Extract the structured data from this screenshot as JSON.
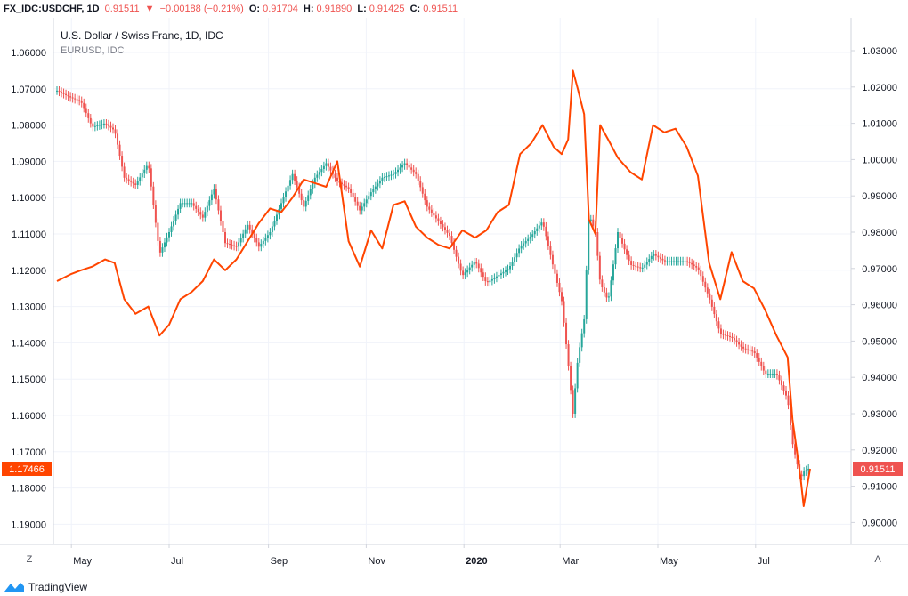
{
  "header": {
    "symbol": "FX_IDC:USDCHF, 1D",
    "last": "0.91511",
    "change_arrow": "▼",
    "change": "−0.00188 (−0.21%)",
    "o_label": "O:",
    "o_value": "0.91704",
    "h_label": "H:",
    "h_value": "0.91890",
    "l_label": "L:",
    "l_value": "0.91425",
    "c_label": "C:",
    "c_value": "0.91511"
  },
  "legend": {
    "main": "U.S. Dollar / Swiss Franc, 1D, IDC",
    "compare": "EURUSD, IDC"
  },
  "footer": {
    "scale_z": "Z",
    "scale_a": "A",
    "brand": "TradingView"
  },
  "colors": {
    "up": "#26a69a",
    "down": "#ef5350",
    "compare_line": "#ff4500",
    "grid": "#f0f3fa",
    "axis_text": "#131722"
  },
  "chart_data": {
    "type": "candlestick_with_compare_line",
    "x_ticks": [
      "May",
      "Jul",
      "Sep",
      "Nov",
      "2020",
      "Mar",
      "May",
      "Jul"
    ],
    "left_axis": {
      "series": "EURUSD",
      "inverted": true,
      "ticks": [
        "1.06000",
        "1.07000",
        "1.08000",
        "1.09000",
        "1.10000",
        "1.11000",
        "1.12000",
        "1.13000",
        "1.14000",
        "1.15000",
        "1.16000",
        "1.17000",
        "1.18000",
        "1.19000"
      ],
      "current_label": "1.17466",
      "current_value": 1.17466
    },
    "right_axis": {
      "series": "USDCHF",
      "ticks": [
        "1.03000",
        "1.02000",
        "1.01000",
        "1.00000",
        "0.99000",
        "0.98000",
        "0.97000",
        "0.96000",
        "0.95000",
        "0.94000",
        "0.93000",
        "0.92000",
        "0.91000",
        "0.90000"
      ],
      "current_label": "0.91511",
      "current_value": 0.91511
    },
    "usdchf_close_keypoints": [
      [
        "2019-04-22",
        1.019
      ],
      [
        "2019-05-01",
        1.017
      ],
      [
        "2019-05-07",
        1.016
      ],
      [
        "2019-05-14",
        1.009
      ],
      [
        "2019-05-22",
        1.01
      ],
      [
        "2019-05-28",
        1.008
      ],
      [
        "2019-06-03",
        0.995
      ],
      [
        "2019-06-10",
        0.993
      ],
      [
        "2019-06-18",
        0.999
      ],
      [
        "2019-06-25",
        0.974
      ],
      [
        "2019-07-01",
        0.98
      ],
      [
        "2019-07-08",
        0.988
      ],
      [
        "2019-07-15",
        0.988
      ],
      [
        "2019-07-22",
        0.984
      ],
      [
        "2019-07-29",
        0.992
      ],
      [
        "2019-08-05",
        0.977
      ],
      [
        "2019-08-12",
        0.976
      ],
      [
        "2019-08-19",
        0.982
      ],
      [
        "2019-08-26",
        0.976
      ],
      [
        "2019-09-02",
        0.98
      ],
      [
        "2019-09-09",
        0.988
      ],
      [
        "2019-09-16",
        0.996
      ],
      [
        "2019-09-23",
        0.987
      ],
      [
        "2019-09-30",
        0.995
      ],
      [
        "2019-10-07",
        0.999
      ],
      [
        "2019-10-14",
        0.994
      ],
      [
        "2019-10-21",
        0.992
      ],
      [
        "2019-10-28",
        0.986
      ],
      [
        "2019-11-04",
        0.991
      ],
      [
        "2019-11-11",
        0.995
      ],
      [
        "2019-11-18",
        0.996
      ],
      [
        "2019-11-25",
        0.999
      ],
      [
        "2019-12-02",
        0.996
      ],
      [
        "2019-12-09",
        0.987
      ],
      [
        "2019-12-16",
        0.983
      ],
      [
        "2019-12-23",
        0.979
      ],
      [
        "2019-12-31",
        0.968
      ],
      [
        "2020-01-08",
        0.972
      ],
      [
        "2020-01-15",
        0.966
      ],
      [
        "2020-01-22",
        0.968
      ],
      [
        "2020-01-29",
        0.97
      ],
      [
        "2020-02-05",
        0.976
      ],
      [
        "2020-02-12",
        0.979
      ],
      [
        "2020-02-19",
        0.983
      ],
      [
        "2020-02-26",
        0.97
      ],
      [
        "2020-03-02",
        0.961
      ],
      [
        "2020-03-06",
        0.944
      ],
      [
        "2020-03-09",
        0.93
      ],
      [
        "2020-03-12",
        0.945
      ],
      [
        "2020-03-16",
        0.956
      ],
      [
        "2020-03-19",
        0.985
      ],
      [
        "2020-03-23",
        0.98
      ],
      [
        "2020-03-26",
        0.966
      ],
      [
        "2020-03-31",
        0.961
      ],
      [
        "2020-04-06",
        0.98
      ],
      [
        "2020-04-14",
        0.971
      ],
      [
        "2020-04-21",
        0.97
      ],
      [
        "2020-04-28",
        0.974
      ],
      [
        "2020-05-05",
        0.972
      ],
      [
        "2020-05-12",
        0.972
      ],
      [
        "2020-05-19",
        0.972
      ],
      [
        "2020-05-26",
        0.97
      ],
      [
        "2020-06-02",
        0.962
      ],
      [
        "2020-06-09",
        0.952
      ],
      [
        "2020-06-16",
        0.951
      ],
      [
        "2020-06-23",
        0.948
      ],
      [
        "2020-06-30",
        0.947
      ],
      [
        "2020-07-07",
        0.941
      ],
      [
        "2020-07-14",
        0.941
      ],
      [
        "2020-07-21",
        0.934
      ],
      [
        "2020-07-24",
        0.922
      ],
      [
        "2020-07-29",
        0.912
      ],
      [
        "2020-07-31",
        0.914
      ],
      [
        "2020-08-04",
        0.9151
      ]
    ],
    "eurusd_keypoints": [
      [
        "2019-04-22",
        1.123
      ],
      [
        "2019-05-01",
        1.121
      ],
      [
        "2019-05-07",
        1.12
      ],
      [
        "2019-05-14",
        1.119
      ],
      [
        "2019-05-22",
        1.117
      ],
      [
        "2019-05-28",
        1.118
      ],
      [
        "2019-06-03",
        1.128
      ],
      [
        "2019-06-10",
        1.132
      ],
      [
        "2019-06-18",
        1.13
      ],
      [
        "2019-06-25",
        1.138
      ],
      [
        "2019-07-01",
        1.135
      ],
      [
        "2019-07-08",
        1.128
      ],
      [
        "2019-07-15",
        1.126
      ],
      [
        "2019-07-22",
        1.123
      ],
      [
        "2019-07-29",
        1.117
      ],
      [
        "2019-08-05",
        1.12
      ],
      [
        "2019-08-12",
        1.117
      ],
      [
        "2019-08-19",
        1.112
      ],
      [
        "2019-08-26",
        1.107
      ],
      [
        "2019-09-02",
        1.103
      ],
      [
        "2019-09-09",
        1.104
      ],
      [
        "2019-09-16",
        1.1
      ],
      [
        "2019-09-23",
        1.095
      ],
      [
        "2019-09-30",
        1.096
      ],
      [
        "2019-10-07",
        1.097
      ],
      [
        "2019-10-14",
        1.09
      ],
      [
        "2019-10-21",
        1.112
      ],
      [
        "2019-10-28",
        1.119
      ],
      [
        "2019-11-04",
        1.109
      ],
      [
        "2019-11-11",
        1.114
      ],
      [
        "2019-11-18",
        1.102
      ],
      [
        "2019-11-25",
        1.101
      ],
      [
        "2019-12-02",
        1.108
      ],
      [
        "2019-12-09",
        1.111
      ],
      [
        "2019-12-16",
        1.113
      ],
      [
        "2019-12-23",
        1.114
      ],
      [
        "2019-12-31",
        1.109
      ],
      [
        "2020-01-08",
        1.111
      ],
      [
        "2020-01-15",
        1.109
      ],
      [
        "2020-01-22",
        1.104
      ],
      [
        "2020-01-29",
        1.102
      ],
      [
        "2020-02-05",
        1.088
      ],
      [
        "2020-02-12",
        1.085
      ],
      [
        "2020-02-19",
        1.08
      ],
      [
        "2020-02-26",
        1.086
      ],
      [
        "2020-03-02",
        1.088
      ],
      [
        "2020-03-06",
        1.084
      ],
      [
        "2020-03-09",
        1.065
      ],
      [
        "2020-03-12",
        1.07
      ],
      [
        "2020-03-16",
        1.077
      ],
      [
        "2020-03-19",
        1.106
      ],
      [
        "2020-03-23",
        1.11
      ],
      [
        "2020-03-26",
        1.08
      ],
      [
        "2020-03-31",
        1.084
      ],
      [
        "2020-04-06",
        1.089
      ],
      [
        "2020-04-14",
        1.093
      ],
      [
        "2020-04-21",
        1.095
      ],
      [
        "2020-04-28",
        1.08
      ],
      [
        "2020-05-05",
        1.082
      ],
      [
        "2020-05-12",
        1.081
      ],
      [
        "2020-05-19",
        1.086
      ],
      [
        "2020-05-26",
        1.094
      ],
      [
        "2020-06-02",
        1.118
      ],
      [
        "2020-06-09",
        1.128
      ],
      [
        "2020-06-16",
        1.115
      ],
      [
        "2020-06-23",
        1.123
      ],
      [
        "2020-06-30",
        1.125
      ],
      [
        "2020-07-07",
        1.131
      ],
      [
        "2020-07-14",
        1.138
      ],
      [
        "2020-07-21",
        1.144
      ],
      [
        "2020-07-24",
        1.161
      ],
      [
        "2020-07-29",
        1.177
      ],
      [
        "2020-07-31",
        1.185
      ],
      [
        "2020-08-04",
        1.1747
      ]
    ]
  }
}
